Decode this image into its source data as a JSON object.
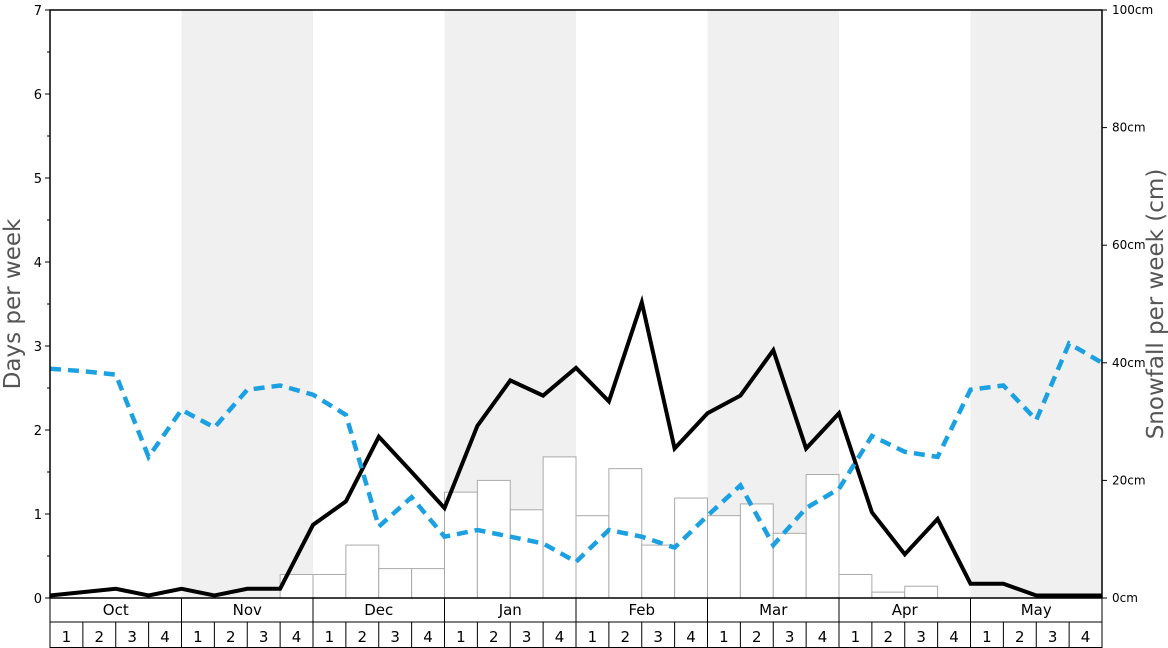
{
  "chart_data": {
    "type": "bar+line",
    "months": [
      "Oct",
      "Nov",
      "Dec",
      "Jan",
      "Feb",
      "Mar",
      "Apr",
      "May"
    ],
    "weeks": [
      "1",
      "2",
      "3",
      "4"
    ],
    "ylabel": "Days per week",
    "y2label": "Snowfall per week (cm)",
    "ylim": [
      0,
      7
    ],
    "y_ticks": [
      "0",
      "1",
      "2",
      "3",
      "4",
      "5",
      "6",
      "7"
    ],
    "y2lim": [
      0,
      100
    ],
    "y2_ticks": [
      "0cm",
      "20cm",
      "40cm",
      "60cm",
      "80cm",
      "100cm"
    ],
    "shaded_months": [
      "Nov",
      "Jan",
      "Mar",
      "May"
    ],
    "colors": {
      "shade": "#f0f0f0",
      "days_line": "#000000",
      "dashed_line": "#1ba1e2",
      "bar_stroke": "#aaaaaa",
      "bar_fill": "#ffffff"
    },
    "bars_days": [
      0,
      0,
      0,
      0,
      0,
      0,
      0,
      0.28,
      0.28,
      0.63,
      0.35,
      0.35,
      1.26,
      1.4,
      1.05,
      1.68,
      0.98,
      1.54,
      0.63,
      1.19,
      0.98,
      1.12,
      0.77,
      1.47,
      0.28,
      0.07,
      0.14,
      0,
      0,
      0,
      0,
      0
    ],
    "series": [
      {
        "style": "solid",
        "values": [
          0.03,
          0.07,
          0.11,
          0.03,
          0.11,
          0.03,
          0.11,
          0.11,
          0.87,
          1.15,
          1.92,
          1.5,
          1.07,
          2.05,
          2.59,
          2.41,
          2.74,
          2.34,
          3.52,
          1.78,
          2.2,
          2.41,
          2.95,
          1.78,
          2.2,
          1.02,
          0.52,
          0.94,
          0.17,
          0.17,
          0.03,
          0.03,
          0.03
        ]
      },
      {
        "style": "dashed",
        "values": [
          2.73,
          2.7,
          2.66,
          1.68,
          2.24,
          2.03,
          2.48,
          2.53,
          2.42,
          2.18,
          0.85,
          1.2,
          0.73,
          0.81,
          0.73,
          0.65,
          0.43,
          0.81,
          0.73,
          0.6,
          0.98,
          1.34,
          0.63,
          1.07,
          1.3,
          1.93,
          1.74,
          1.68,
          2.48,
          2.53,
          2.12,
          3.03,
          2.8
        ]
      }
    ]
  }
}
